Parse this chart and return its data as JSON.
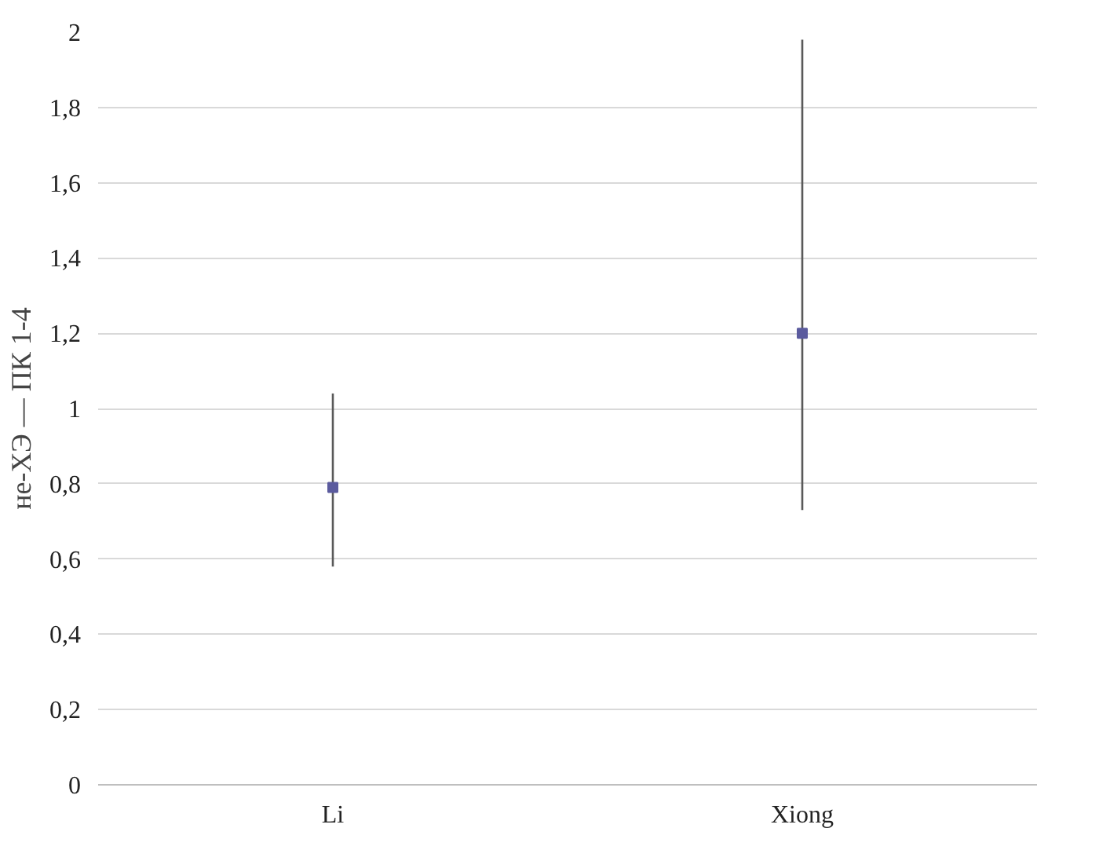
{
  "chart_data": {
    "type": "scatter",
    "ylabel": "не-ХЭ — ПК 1-4",
    "categories": [
      "Li",
      "Xiong"
    ],
    "values": [
      0.79,
      1.2
    ],
    "errors": [
      [
        0.58,
        1.04
      ],
      [
        0.73,
        1.98
      ]
    ],
    "color": "#5b5b9e",
    "marker": "square",
    "ylim": [
      0,
      2
    ],
    "yticks": [
      0,
      {
        "value": 0.2,
        "label": "0,2"
      },
      {
        "value": 0.4,
        "label": "0,4"
      },
      {
        "value": 0.6,
        "label": "0,6"
      },
      {
        "value": 0.8,
        "label": "0,8"
      },
      1,
      {
        "value": 1.2,
        "label": "1,2"
      },
      {
        "value": 1.4,
        "label": "1,4"
      },
      {
        "value": 1.6,
        "label": "1,6"
      },
      {
        "value": 1.8,
        "label": "1,8"
      },
      2
    ],
    "grid": "y"
  }
}
